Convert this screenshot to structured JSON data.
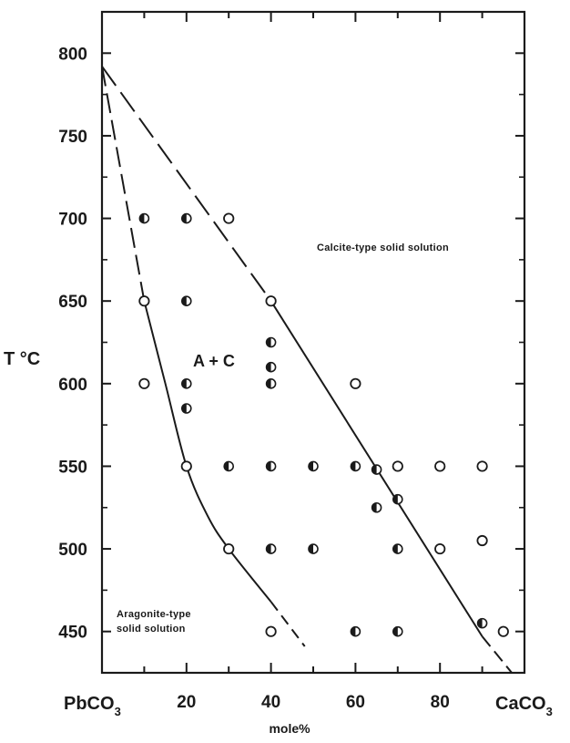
{
  "chart_data": {
    "type": "scatter",
    "title": "",
    "xlabel": "mole%",
    "ylabel": "T °C",
    "x_left_end": "PbCO",
    "x_right_end": "CaCO",
    "end_subscript": "3",
    "xlim": [
      0,
      100
    ],
    "ylim": [
      425,
      825
    ],
    "x_ticks": [
      20,
      40,
      60,
      80
    ],
    "y_ticks": [
      450,
      500,
      550,
      600,
      650,
      700,
      750,
      800
    ],
    "y_tick_labels": [
      "450",
      "500",
      "550",
      "600",
      "650",
      "700",
      "750",
      "800"
    ],
    "x_tick_labels": [
      "20",
      "40",
      "60",
      "80"
    ],
    "grid": false,
    "region_labels": {
      "calcite": "Calcite-type solid solution",
      "two_phase": "A + C",
      "aragonite_line1": "Aragonite-type",
      "aragonite_line2": "solid solution"
    },
    "series": [
      {
        "marker": "open",
        "points": [
          {
            "x": 30,
            "y": 700
          },
          {
            "x": 10,
            "y": 650
          },
          {
            "x": 40,
            "y": 650
          },
          {
            "x": 10,
            "y": 600
          },
          {
            "x": 60,
            "y": 600
          },
          {
            "x": 20,
            "y": 550
          },
          {
            "x": 70,
            "y": 550
          },
          {
            "x": 80,
            "y": 550
          },
          {
            "x": 90,
            "y": 550
          },
          {
            "x": 80,
            "y": 500
          },
          {
            "x": 90,
            "y": 505
          },
          {
            "x": 40,
            "y": 450
          },
          {
            "x": 95,
            "y": 450
          },
          {
            "x": 30,
            "y": 500
          }
        ]
      },
      {
        "marker": "half-filled",
        "points": [
          {
            "x": 10,
            "y": 700
          },
          {
            "x": 20,
            "y": 700
          },
          {
            "x": 20,
            "y": 650
          },
          {
            "x": 40,
            "y": 625
          },
          {
            "x": 40,
            "y": 610
          },
          {
            "x": 40,
            "y": 600
          },
          {
            "x": 20,
            "y": 600
          },
          {
            "x": 20,
            "y": 585
          },
          {
            "x": 30,
            "y": 550
          },
          {
            "x": 40,
            "y": 550
          },
          {
            "x": 50,
            "y": 550
          },
          {
            "x": 60,
            "y": 550
          },
          {
            "x": 65,
            "y": 548
          },
          {
            "x": 70,
            "y": 530
          },
          {
            "x": 65,
            "y": 525
          },
          {
            "x": 40,
            "y": 500
          },
          {
            "x": 50,
            "y": 500
          },
          {
            "x": 70,
            "y": 500
          },
          {
            "x": 60,
            "y": 450
          },
          {
            "x": 70,
            "y": 450
          },
          {
            "x": 90,
            "y": 455
          }
        ]
      }
    ],
    "boundaries": {
      "calcite_solvus": {
        "style": "dashed-to-solid",
        "points": [
          [
            0,
            792
          ],
          [
            40,
            650
          ],
          [
            90,
            447
          ],
          [
            97,
            425
          ]
        ]
      },
      "aragonite_solvus": {
        "style": "dashed-to-solid",
        "points": [
          [
            0,
            792
          ],
          [
            10,
            650
          ],
          [
            15,
            600
          ],
          [
            20,
            550
          ],
          [
            25,
            520
          ],
          [
            30,
            500
          ],
          [
            40,
            468
          ],
          [
            48,
            441
          ]
        ]
      }
    }
  }
}
